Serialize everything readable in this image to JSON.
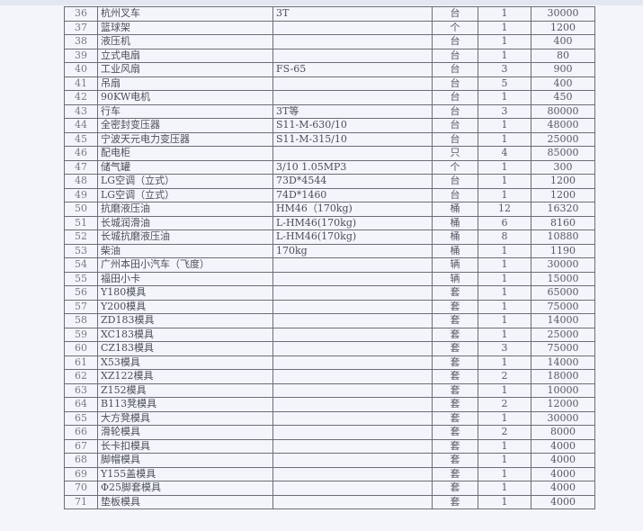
{
  "rows": [
    {
      "no": "36",
      "name": "杭州叉车",
      "spec": "3T",
      "unit": "台",
      "qty": "1",
      "value": "30000"
    },
    {
      "no": "37",
      "name": "篮球架",
      "spec": "",
      "unit": "个",
      "qty": "1",
      "value": "1200"
    },
    {
      "no": "38",
      "name": "液压机",
      "spec": "",
      "unit": "台",
      "qty": "1",
      "value": "400"
    },
    {
      "no": "39",
      "name": "立式电扇",
      "spec": "",
      "unit": "台",
      "qty": "1",
      "value": "80"
    },
    {
      "no": "40",
      "name": "工业风扇",
      "spec": "FS-65",
      "unit": "台",
      "qty": "3",
      "value": "900"
    },
    {
      "no": "41",
      "name": "吊扇",
      "spec": "",
      "unit": "台",
      "qty": "5",
      "value": "400"
    },
    {
      "no": "42",
      "name": "90KW电机",
      "spec": "",
      "unit": "台",
      "qty": "1",
      "value": "450"
    },
    {
      "no": "43",
      "name": "行车",
      "spec": "3T等",
      "unit": "台",
      "qty": "3",
      "value": "80000"
    },
    {
      "no": "44",
      "name": "全密封变压器",
      "spec": "S11-M-630/10",
      "unit": "台",
      "qty": "1",
      "value": "48000"
    },
    {
      "no": "45",
      "name": "宁波天元电力变压器",
      "spec": "S11-M-315/10",
      "unit": "台",
      "qty": "1",
      "value": "25000"
    },
    {
      "no": "46",
      "name": "配电柜",
      "spec": "",
      "unit": "只",
      "qty": "4",
      "value": "85000"
    },
    {
      "no": "47",
      "name": "储气罐",
      "spec": "3/10    1.05MP3",
      "unit": "个",
      "qty": "1",
      "value": "300"
    },
    {
      "no": "48",
      "name": "LG空调（立式）",
      "spec": "73D*4544",
      "unit": "台",
      "qty": "1",
      "value": "1200"
    },
    {
      "no": "49",
      "name": "LG空调（立式）",
      "spec": "74D*1460",
      "unit": "台",
      "qty": "1",
      "value": "1200"
    },
    {
      "no": "50",
      "name": "抗磨液压油",
      "spec": "HM46（170kg)",
      "unit": "桶",
      "qty": "12",
      "value": "16320"
    },
    {
      "no": "51",
      "name": "长城润滑油",
      "spec": "L-HM46(170kg)",
      "unit": "桶",
      "qty": "6",
      "value": "8160"
    },
    {
      "no": "52",
      "name": "长城抗磨液压油",
      "spec": "L-HM46(170kg)",
      "unit": "桶",
      "qty": "8",
      "value": "10880"
    },
    {
      "no": "53",
      "name": "柴油",
      "spec": "170kg",
      "unit": "桶",
      "qty": "1",
      "value": "1190"
    },
    {
      "no": "54",
      "name": "广州本田小汽车（飞度）",
      "spec": "",
      "unit": "辆",
      "qty": "1",
      "value": "30000"
    },
    {
      "no": "55",
      "name": "福田小卡",
      "spec": "",
      "unit": "辆",
      "qty": "1",
      "value": "15000"
    },
    {
      "no": "56",
      "name": "Y180模具",
      "spec": "",
      "unit": "套",
      "qty": "1",
      "value": "65000"
    },
    {
      "no": "57",
      "name": "Y200模具",
      "spec": "",
      "unit": "套",
      "qty": "1",
      "value": "75000"
    },
    {
      "no": "58",
      "name": "ZD183模具",
      "spec": "",
      "unit": "套",
      "qty": "1",
      "value": "14000"
    },
    {
      "no": "59",
      "name": "XC183模具",
      "spec": "",
      "unit": "套",
      "qty": "1",
      "value": "25000"
    },
    {
      "no": "60",
      "name": "CZ183模具",
      "spec": "",
      "unit": "套",
      "qty": "3",
      "value": "75000"
    },
    {
      "no": "61",
      "name": "X53模具",
      "spec": "",
      "unit": "套",
      "qty": "1",
      "value": "14000"
    },
    {
      "no": "62",
      "name": "XZ122模具",
      "spec": "",
      "unit": "套",
      "qty": "2",
      "value": "18000"
    },
    {
      "no": "63",
      "name": "Z152模具",
      "spec": "",
      "unit": "套",
      "qty": "1",
      "value": "10000"
    },
    {
      "no": "64",
      "name": "B113凳模具",
      "spec": "",
      "unit": "套",
      "qty": "2",
      "value": "12000"
    },
    {
      "no": "65",
      "name": "大方凳模具",
      "spec": "",
      "unit": "套",
      "qty": "1",
      "value": "30000"
    },
    {
      "no": "66",
      "name": "滑轮模具",
      "spec": "",
      "unit": "套",
      "qty": "2",
      "value": "8000"
    },
    {
      "no": "67",
      "name": "长卡扣模具",
      "spec": "",
      "unit": "套",
      "qty": "1",
      "value": "4000"
    },
    {
      "no": "68",
      "name": "脚帽模具",
      "spec": "",
      "unit": "套",
      "qty": "1",
      "value": "4000"
    },
    {
      "no": "69",
      "name": "Y155盖模具",
      "spec": "",
      "unit": "套",
      "qty": "1",
      "value": "4000"
    },
    {
      "no": "70",
      "name": "Φ25脚套模具",
      "spec": "",
      "unit": "套",
      "qty": "1",
      "value": "4000"
    },
    {
      "no": "71",
      "name": "垫板模具",
      "spec": "",
      "unit": "套",
      "qty": "1",
      "value": "4000"
    }
  ]
}
